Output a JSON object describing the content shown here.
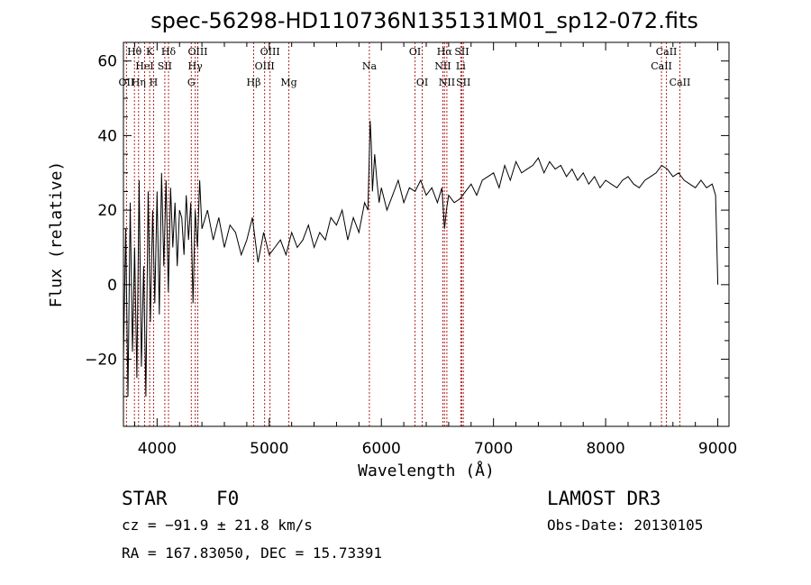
{
  "chart_data": {
    "type": "line",
    "title": "spec-56298-HD110736N135131M01_sp12-072.fits",
    "xlabel": "Wavelength (Å)",
    "ylabel": "Flux (relative)",
    "xlim": [
      3700,
      9100
    ],
    "ylim": [
      -38,
      65
    ],
    "x_ticks": [
      {
        "value": 4000,
        "label": "4000"
      },
      {
        "value": 5000,
        "label": "5000"
      },
      {
        "value": 6000,
        "label": "6000"
      },
      {
        "value": 7000,
        "label": "7000"
      },
      {
        "value": 8000,
        "label": "8000"
      },
      {
        "value": 9000,
        "label": "9000"
      }
    ],
    "y_ticks": [
      {
        "value": -20,
        "label": "−20"
      },
      {
        "value": 0,
        "label": "0"
      },
      {
        "value": 20,
        "label": "20"
      },
      {
        "value": 40,
        "label": "40"
      },
      {
        "value": 60,
        "label": "60"
      }
    ],
    "spectrum": {
      "wavelength": [
        3700,
        3720,
        3740,
        3760,
        3780,
        3800,
        3820,
        3840,
        3860,
        3880,
        3900,
        3920,
        3940,
        3960,
        3980,
        4000,
        4020,
        4040,
        4060,
        4080,
        4100,
        4120,
        4140,
        4160,
        4180,
        4200,
        4220,
        4240,
        4260,
        4280,
        4300,
        4320,
        4340,
        4360,
        4380,
        4400,
        4450,
        4500,
        4550,
        4600,
        4650,
        4700,
        4750,
        4800,
        4850,
        4900,
        4950,
        5000,
        5050,
        5100,
        5150,
        5200,
        5250,
        5300,
        5350,
        5400,
        5450,
        5500,
        5550,
        5600,
        5650,
        5700,
        5750,
        5800,
        5850,
        5880,
        5900,
        5910,
        5920,
        5940,
        5960,
        5980,
        6000,
        6050,
        6100,
        6150,
        6200,
        6250,
        6300,
        6350,
        6400,
        6450,
        6500,
        6540,
        6563,
        6580,
        6600,
        6650,
        6700,
        6750,
        6800,
        6850,
        6900,
        6950,
        7000,
        7050,
        7100,
        7150,
        7200,
        7250,
        7300,
        7350,
        7400,
        7450,
        7500,
        7550,
        7600,
        7650,
        7700,
        7750,
        7800,
        7850,
        7900,
        7950,
        8000,
        8050,
        8100,
        8150,
        8200,
        8250,
        8300,
        8350,
        8400,
        8450,
        8500,
        8550,
        8600,
        8650,
        8700,
        8750,
        8800,
        8850,
        8900,
        8950,
        8980,
        9000
      ],
      "flux": [
        -20,
        15,
        -30,
        22,
        -18,
        10,
        -25,
        28,
        -22,
        5,
        -30,
        25,
        -10,
        20,
        -5,
        25,
        -8,
        30,
        5,
        28,
        -2,
        26,
        10,
        22,
        5,
        20,
        18,
        8,
        24,
        12,
        22,
        -5,
        20,
        10,
        28,
        15,
        20,
        12,
        18,
        10,
        16,
        14,
        8,
        12,
        18,
        6,
        14,
        8,
        10,
        12,
        8,
        14,
        10,
        12,
        16,
        10,
        14,
        12,
        18,
        16,
        20,
        12,
        18,
        14,
        22,
        20,
        44,
        38,
        25,
        35,
        28,
        22,
        26,
        20,
        24,
        28,
        22,
        26,
        25,
        28,
        24,
        26,
        22,
        26,
        15,
        20,
        24,
        22,
        23,
        25,
        27,
        24,
        28,
        29,
        30,
        26,
        32,
        28,
        33,
        30,
        31,
        32,
        34,
        30,
        33,
        31,
        32,
        29,
        31,
        28,
        30,
        27,
        29,
        26,
        28,
        27,
        26,
        28,
        29,
        27,
        26,
        28,
        29,
        30,
        32,
        31,
        29,
        30,
        28,
        27,
        26,
        28,
        26,
        27,
        24,
        0
      ]
    },
    "annotations": [
      {
        "label": "Hθ",
        "wavelength": 3798,
        "row": 1
      },
      {
        "label": "OII",
        "wavelength": 3727,
        "row": 3
      },
      {
        "label": "Hη",
        "wavelength": 3835,
        "row": 3
      },
      {
        "label": "HeI",
        "wavelength": 3889,
        "row": 2
      },
      {
        "label": "K",
        "wavelength": 3934,
        "row": 1
      },
      {
        "label": "H",
        "wavelength": 3969,
        "row": 3
      },
      {
        "label": "SII",
        "wavelength": 4069,
        "row": 2
      },
      {
        "label": "Hδ",
        "wavelength": 4102,
        "row": 1
      },
      {
        "label": "OIII",
        "wavelength": 4363,
        "row": 1
      },
      {
        "label": "Hγ",
        "wavelength": 4340,
        "row": 2
      },
      {
        "label": "G",
        "wavelength": 4305,
        "row": 3
      },
      {
        "label": "Hβ",
        "wavelength": 4861,
        "row": 3
      },
      {
        "label": "OIII",
        "wavelength": 4959,
        "row": 2
      },
      {
        "label": "OIII",
        "wavelength": 5007,
        "row": 1
      },
      {
        "label": "Mg",
        "wavelength": 5175,
        "row": 3
      },
      {
        "label": "Na",
        "wavelength": 5893,
        "row": 2
      },
      {
        "label": "OI",
        "wavelength": 6300,
        "row": 1
      },
      {
        "label": "OI",
        "wavelength": 6364,
        "row": 3
      },
      {
        "label": "NII",
        "wavelength": 6548,
        "row": 2
      },
      {
        "label": "Hα",
        "wavelength": 6563,
        "row": 1
      },
      {
        "label": "NII",
        "wavelength": 6584,
        "row": 3
      },
      {
        "label": "SII",
        "wavelength": 6717,
        "row": 1
      },
      {
        "label": "Li",
        "wavelength": 6708,
        "row": 2
      },
      {
        "label": "SII",
        "wavelength": 6731,
        "row": 3
      },
      {
        "label": "CaII",
        "wavelength": 8498,
        "row": 2
      },
      {
        "label": "CaII",
        "wavelength": 8542,
        "row": 1
      },
      {
        "label": "CaII",
        "wavelength": 8662,
        "row": 3
      }
    ]
  },
  "info": {
    "class": "STAR",
    "subclass": "F0",
    "survey": "LAMOST DR3",
    "redshift": "cz = −91.9 ± 21.8 km/s",
    "obs_date": "Obs-Date: 20130105",
    "coords": "RA = 167.83050, DEC =  15.73391"
  },
  "colors": {
    "line_marker": "#b22222",
    "spectrum": "#000000"
  }
}
